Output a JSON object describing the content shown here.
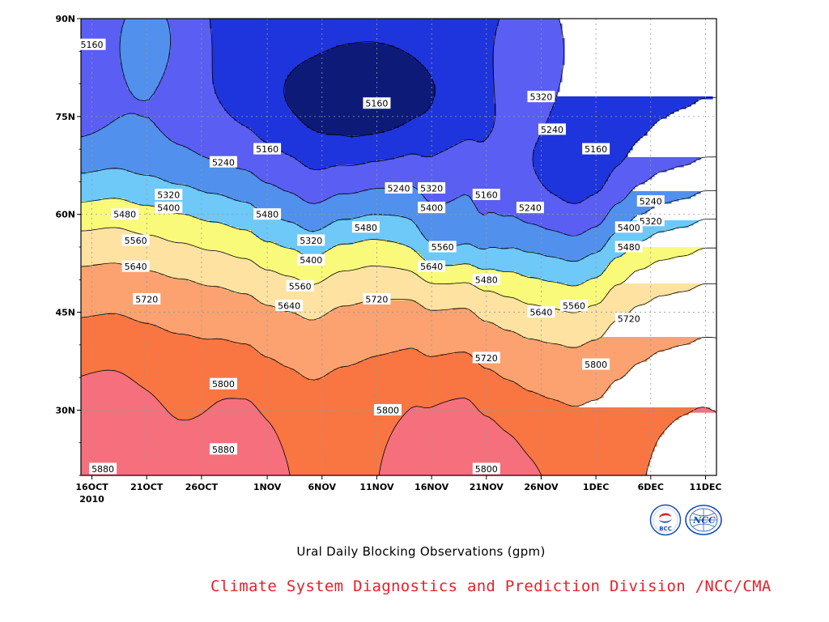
{
  "title": "Ural Daily Blocking Observations (gpm)",
  "credit": "Climate System Diagnostics and Prediction Division /NCC/CMA",
  "logos": [
    {
      "text": "BCC",
      "color": "#1b4fb0"
    },
    {
      "text": "NCC",
      "color": "#1a4ab0"
    }
  ],
  "chart_data": {
    "type": "contour",
    "xlabel": "",
    "ylabel": "",
    "x_ticks": [
      "16OCT",
      "21OCT",
      "26OCT",
      "1NOV",
      "6NOV",
      "11NOV",
      "16NOV",
      "21NOV",
      "26NOV",
      "1DEC",
      "6DEC",
      "11DEC"
    ],
    "x_subtitle": "2010",
    "y_ticks": [
      "30N",
      "45N",
      "60N",
      "75N",
      "90N"
    ],
    "ylim": [
      20,
      90
    ],
    "xlim_days": [
      "2010-10-15",
      "2010-12-12"
    ],
    "grid": true,
    "levels": [
      5160,
      5240,
      5320,
      5400,
      5480,
      5560,
      5640,
      5720,
      5800,
      5880
    ],
    "fill_colors": [
      "#0d1a78",
      "#1e34dc",
      "#5a5ef2",
      "#5190ec",
      "#6ec8f8",
      "#fafa7a",
      "#fde2a2",
      "#fba270",
      "#f97642",
      "#f66f7c",
      "#ef3a50"
    ],
    "contour_labels": [
      {
        "text": "5160",
        "x": "2010-10-16",
        "y": 86
      },
      {
        "text": "5160",
        "x": "2010-11-11",
        "y": 77
      },
      {
        "text": "5160",
        "x": "2010-11-01",
        "y": 70
      },
      {
        "text": "5240",
        "x": "2010-10-28",
        "y": 68
      },
      {
        "text": "5320",
        "x": "2010-10-23",
        "y": 63
      },
      {
        "text": "5400",
        "x": "2010-10-23",
        "y": 61
      },
      {
        "text": "5480",
        "x": "2010-10-19",
        "y": 60
      },
      {
        "text": "5480",
        "x": "2010-11-01",
        "y": 60
      },
      {
        "text": "5560",
        "x": "2010-10-20",
        "y": 56
      },
      {
        "text": "5640",
        "x": "2010-10-20",
        "y": 52
      },
      {
        "text": "5720",
        "x": "2010-10-21",
        "y": 47
      },
      {
        "text": "5800",
        "x": "2010-10-28",
        "y": 34
      },
      {
        "text": "5880",
        "x": "2010-10-28",
        "y": 24
      },
      {
        "text": "5880",
        "x": "2010-10-17",
        "y": 21
      },
      {
        "text": "5320",
        "x": "2010-11-05",
        "y": 56
      },
      {
        "text": "5400",
        "x": "2010-11-05",
        "y": 53
      },
      {
        "text": "5560",
        "x": "2010-11-04",
        "y": 49
      },
      {
        "text": "5640",
        "x": "2010-11-03",
        "y": 46
      },
      {
        "text": "5480",
        "x": "2010-11-10",
        "y": 58
      },
      {
        "text": "5720",
        "x": "2010-11-11",
        "y": 47
      },
      {
        "text": "5800",
        "x": "2010-11-12",
        "y": 30
      },
      {
        "text": "5240",
        "x": "2010-11-13",
        "y": 64
      },
      {
        "text": "5320",
        "x": "2010-11-16",
        "y": 64
      },
      {
        "text": "5400",
        "x": "2010-11-16",
        "y": 61
      },
      {
        "text": "5560",
        "x": "2010-11-17",
        "y": 55
      },
      {
        "text": "5640",
        "x": "2010-11-16",
        "y": 52
      },
      {
        "text": "5160",
        "x": "2010-11-21",
        "y": 63
      },
      {
        "text": "5240",
        "x": "2010-11-25",
        "y": 61
      },
      {
        "text": "5480",
        "x": "2010-11-21",
        "y": 50
      },
      {
        "text": "5720",
        "x": "2010-11-21",
        "y": 38
      },
      {
        "text": "5800",
        "x": "2010-11-21",
        "y": 21
      },
      {
        "text": "5320",
        "x": "2010-11-26",
        "y": 78
      },
      {
        "text": "5240",
        "x": "2010-11-27",
        "y": 73
      },
      {
        "text": "5160",
        "x": "2010-12-01",
        "y": 70
      },
      {
        "text": "5640",
        "x": "2010-11-26",
        "y": 45
      },
      {
        "text": "5560",
        "x": "2010-11-29",
        "y": 46
      },
      {
        "text": "5720",
        "x": "2010-12-04",
        "y": 44
      },
      {
        "text": "5800",
        "x": "2010-12-01",
        "y": 37
      },
      {
        "text": "5240",
        "x": "2010-12-06",
        "y": 62
      },
      {
        "text": "5320",
        "x": "2010-12-06",
        "y": 59
      },
      {
        "text": "5400",
        "x": "2010-12-04",
        "y": 58
      },
      {
        "text": "5480",
        "x": "2010-12-04",
        "y": 55
      }
    ]
  }
}
